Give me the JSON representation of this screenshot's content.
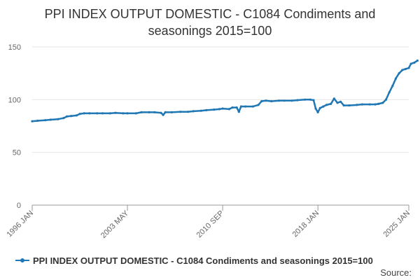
{
  "chart_data": {
    "type": "line",
    "title_lines": [
      "PPI INDEX OUTPUT DOMESTIC - C1084 Condiments and",
      "seasonings 2015=100"
    ],
    "xlabel": "",
    "ylabel": "",
    "ylim": [
      0,
      150
    ],
    "yticks": [
      0,
      50,
      100,
      150
    ],
    "xlim": [
      "1996-01",
      "2025-01"
    ],
    "xticks": [
      {
        "date": "1996-01",
        "label": "1996 JAN"
      },
      {
        "date": "2003-05",
        "label": "2003 MAY"
      },
      {
        "date": "2010-09",
        "label": "2010 SEP"
      },
      {
        "date": "2018-01",
        "label": "2018 JAN"
      },
      {
        "date": "2025-01",
        "label": "2025 JAN"
      }
    ],
    "grid": true,
    "legend_position": "bottom",
    "source_label": "Source:",
    "series": [
      {
        "name": "PPI INDEX OUTPUT DOMESTIC - C1084 Condiments and seasonings 2015=100",
        "color": "#1f77b4",
        "points": [
          [
            "1996-01",
            79.5
          ],
          [
            "1996-06",
            80.0
          ],
          [
            "1997-01",
            80.5
          ],
          [
            "1997-06",
            81.0
          ],
          [
            "1998-01",
            81.5
          ],
          [
            "1998-06",
            82.5
          ],
          [
            "1998-09",
            84.0
          ],
          [
            "1999-01",
            84.5
          ],
          [
            "1999-06",
            85.0
          ],
          [
            "1999-09",
            86.5
          ],
          [
            "2000-01",
            87.0
          ],
          [
            "2000-06",
            87.0
          ],
          [
            "2001-01",
            87.0
          ],
          [
            "2001-06",
            87.0
          ],
          [
            "2002-01",
            87.0
          ],
          [
            "2002-06",
            87.5
          ],
          [
            "2003-01",
            87.0
          ],
          [
            "2003-05",
            87.0
          ],
          [
            "2004-01",
            87.0
          ],
          [
            "2004-06",
            88.0
          ],
          [
            "2005-01",
            88.0
          ],
          [
            "2005-06",
            88.0
          ],
          [
            "2005-12",
            87.5
          ],
          [
            "2006-02",
            85.5
          ],
          [
            "2006-04",
            88.0
          ],
          [
            "2006-10",
            88.0
          ],
          [
            "2007-06",
            88.5
          ],
          [
            "2008-01",
            88.5
          ],
          [
            "2008-06",
            89.0
          ],
          [
            "2009-01",
            89.5
          ],
          [
            "2009-06",
            90.0
          ],
          [
            "2010-01",
            90.5
          ],
          [
            "2010-06",
            91.0
          ],
          [
            "2010-09",
            91.5
          ],
          [
            "2011-03",
            91.0
          ],
          [
            "2011-06",
            92.5
          ],
          [
            "2011-10",
            92.5
          ],
          [
            "2011-12",
            88.5
          ],
          [
            "2012-02",
            93.5
          ],
          [
            "2012-06",
            93.5
          ],
          [
            "2013-01",
            93.5
          ],
          [
            "2013-06",
            95.0
          ],
          [
            "2013-09",
            98.5
          ],
          [
            "2014-01",
            99.0
          ],
          [
            "2014-06",
            98.5
          ],
          [
            "2015-01",
            99.0
          ],
          [
            "2015-06",
            99.0
          ],
          [
            "2016-01",
            99.0
          ],
          [
            "2016-06",
            99.5
          ],
          [
            "2017-01",
            100.0
          ],
          [
            "2017-06",
            100.0
          ],
          [
            "2017-09",
            99.5
          ],
          [
            "2017-11",
            91.5
          ],
          [
            "2018-01",
            88.0
          ],
          [
            "2018-03",
            92.0
          ],
          [
            "2018-06",
            93.5
          ],
          [
            "2018-09",
            95.0
          ],
          [
            "2019-01",
            96.0
          ],
          [
            "2019-04",
            101.0
          ],
          [
            "2019-07",
            97.0
          ],
          [
            "2019-10",
            98.0
          ],
          [
            "2020-01",
            94.5
          ],
          [
            "2020-06",
            94.5
          ],
          [
            "2021-01",
            95.0
          ],
          [
            "2021-06",
            95.5
          ],
          [
            "2022-01",
            95.5
          ],
          [
            "2022-06",
            95.5
          ],
          [
            "2022-09",
            96.0
          ],
          [
            "2023-01",
            97.0
          ],
          [
            "2023-04",
            100.0
          ],
          [
            "2023-07",
            107.0
          ],
          [
            "2023-10",
            113.0
          ],
          [
            "2024-01",
            120.0
          ],
          [
            "2024-04",
            125.0
          ],
          [
            "2024-07",
            128.0
          ],
          [
            "2024-10",
            129.0
          ],
          [
            "2025-01",
            130.0
          ],
          [
            "2025-03",
            134.0
          ],
          [
            "2025-06",
            135.0
          ],
          [
            "2025-09",
            137.0
          ]
        ]
      }
    ]
  }
}
